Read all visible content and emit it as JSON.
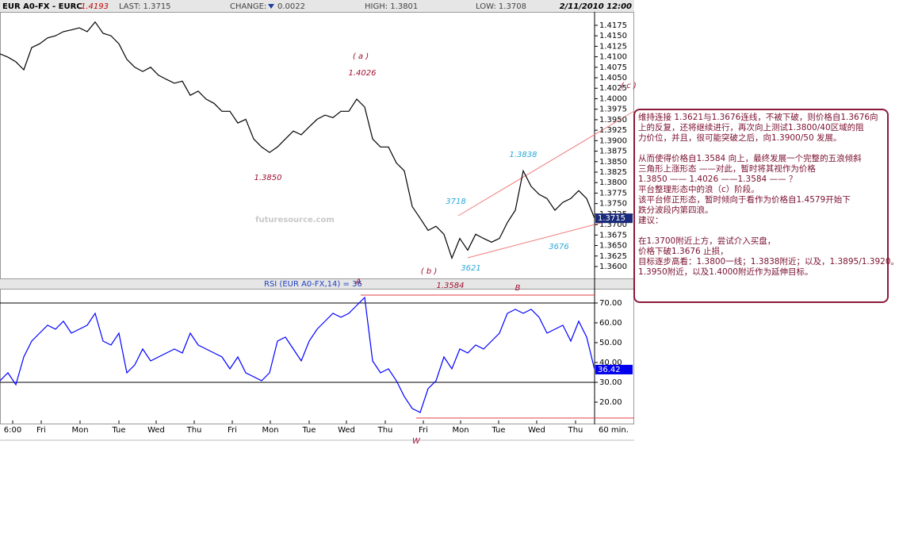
{
  "header": {
    "symbol": "EUR A0-FX - EURC",
    "price": "1.4193",
    "last": "LAST: 1.3715",
    "change_label": "CHANGE:",
    "change": "0.0022",
    "high": "HIGH: 1.3801",
    "low": "LOW: 1.3708",
    "datetime": "2/11/2010 12:00"
  },
  "chart_data": [
    {
      "type": "line",
      "name": "EUR A0-FX",
      "color": "#000000",
      "x": [
        0,
        5,
        10,
        15,
        20,
        25,
        30,
        35,
        40,
        45,
        50,
        55,
        60,
        65,
        70,
        75,
        80,
        85,
        90,
        95,
        100,
        105,
        110,
        115,
        120,
        125,
        130,
        135,
        140,
        145,
        150,
        155,
        160,
        165,
        170,
        175,
        180,
        185,
        190,
        195,
        200,
        205,
        210,
        215,
        220,
        225,
        230,
        235,
        240,
        245,
        250,
        255,
        260,
        265,
        270,
        275,
        280,
        285,
        290,
        295,
        300,
        305,
        310,
        315,
        320,
        325,
        330,
        335,
        340,
        345,
        350,
        355,
        360,
        365,
        370,
        375
      ],
      "values": [
        1.4107,
        1.4099,
        1.4088,
        1.4069,
        1.4122,
        1.4131,
        1.4145,
        1.415,
        1.416,
        1.4164,
        1.4169,
        1.416,
        1.4183,
        1.4156,
        1.415,
        1.4131,
        1.4094,
        1.4075,
        1.4065,
        1.4075,
        1.4056,
        1.4046,
        1.4037,
        1.4042,
        1.4008,
        1.4018,
        1.3999,
        1.3989,
        1.397,
        1.397,
        1.3942,
        1.3951,
        1.3904,
        1.3885,
        1.3872,
        1.3885,
        1.3904,
        1.3923,
        1.3914,
        1.3933,
        1.3951,
        1.3961,
        1.3955,
        1.397,
        1.397,
        1.3999,
        1.398,
        1.3904,
        1.3885,
        1.3885,
        1.3847,
        1.3828,
        1.3743,
        1.3715,
        1.3686,
        1.3696,
        1.3677,
        1.362,
        1.3667,
        1.3639,
        1.3677,
        1.3667,
        1.3658,
        1.3667,
        1.3705,
        1.3734,
        1.3828,
        1.3791,
        1.3772,
        1.3762,
        1.3734,
        1.3753,
        1.3762,
        1.3781,
        1.3762,
        1.3715
      ],
      "xlim": [
        0,
        375
      ],
      "ylim": [
        1.35735,
        1.4207
      ],
      "yticks": [
        {
          "value": 1.36,
          "label": "1.3600"
        },
        {
          "value": 1.3625,
          "label": "1.3625"
        },
        {
          "value": 1.365,
          "label": "1.3650"
        },
        {
          "value": 1.3675,
          "label": "1.3675"
        },
        {
          "value": 1.37,
          "label": "1.3700"
        },
        {
          "value": 1.3725,
          "label": "1.3725"
        },
        {
          "value": 1.375,
          "label": "1.3750"
        },
        {
          "value": 1.3775,
          "label": "1.3775"
        },
        {
          "value": 1.38,
          "label": "1.3800"
        },
        {
          "value": 1.3825,
          "label": "1.3825"
        },
        {
          "value": 1.385,
          "label": "1.3850"
        },
        {
          "value": 1.3875,
          "label": "1.3875"
        },
        {
          "value": 1.39,
          "label": "1.3900"
        },
        {
          "value": 1.3925,
          "label": "1.3925"
        },
        {
          "value": 1.395,
          "label": "1.3950"
        },
        {
          "value": 1.3975,
          "label": "1.3975"
        },
        {
          "value": 1.4,
          "label": "1.4000"
        },
        {
          "value": 1.4025,
          "label": "1.4025"
        },
        {
          "value": 1.405,
          "label": "1.4050"
        },
        {
          "value": 1.4075,
          "label": "1.4075"
        },
        {
          "value": 1.41,
          "label": "1.4100"
        },
        {
          "value": 1.4125,
          "label": "1.4125"
        },
        {
          "value": 1.415,
          "label": "1.4150"
        },
        {
          "value": 1.4175,
          "label": "1.4175"
        }
      ]
    },
    {
      "type": "line",
      "name": "RSI (EUR A0-FX,14) = 36",
      "color": "#0000ff",
      "x": [
        0,
        5,
        10,
        15,
        20,
        25,
        30,
        35,
        40,
        45,
        50,
        55,
        60,
        65,
        70,
        75,
        80,
        85,
        90,
        95,
        100,
        105,
        110,
        115,
        120,
        125,
        130,
        135,
        140,
        145,
        150,
        155,
        160,
        165,
        170,
        175,
        180,
        185,
        190,
        195,
        200,
        205,
        210,
        215,
        220,
        225,
        230,
        235,
        240,
        245,
        250,
        255,
        260,
        265,
        270,
        275,
        280,
        285,
        290,
        295,
        300,
        305,
        310,
        315,
        320,
        325,
        330,
        335,
        340,
        345,
        350,
        355,
        360,
        365,
        370,
        375
      ],
      "values": [
        30.8,
        34.8,
        28.8,
        42.8,
        50.8,
        54.8,
        58.8,
        56.8,
        60.8,
        54.8,
        56.8,
        58.8,
        64.8,
        50.8,
        48.8,
        54.8,
        34.8,
        38.8,
        46.8,
        40.8,
        42.8,
        44.8,
        46.8,
        44.8,
        54.8,
        48.8,
        46.8,
        44.8,
        42.8,
        36.8,
        42.8,
        34.8,
        32.8,
        30.8,
        34.8,
        50.8,
        52.8,
        46.8,
        40.8,
        50.8,
        56.8,
        60.8,
        64.8,
        62.8,
        64.8,
        68.8,
        72.8,
        40.8,
        34.8,
        36.8,
        30.8,
        22.8,
        16.8,
        14.8,
        26.8,
        30.8,
        42.8,
        36.8,
        46.8,
        44.8,
        48.8,
        46.8,
        50.8,
        54.8,
        64.8,
        66.8,
        64.8,
        66.8,
        62.8,
        54.8,
        56.8,
        58.8,
        50.8,
        60.8,
        52.8,
        36.42
      ],
      "xlim": [
        0,
        375
      ],
      "ylim": [
        10.8,
        76.8
      ],
      "yticks": [
        {
          "value": 20,
          "label": "20.00"
        },
        {
          "value": 30,
          "label": "30.00"
        },
        {
          "value": 40,
          "label": "40.00"
        },
        {
          "value": 50,
          "label": "50.00"
        },
        {
          "value": 60,
          "label": "60.00"
        },
        {
          "value": 70,
          "label": "70.00"
        }
      ],
      "reference_lines": [
        70,
        30
      ],
      "xticks": [
        {
          "value": 8,
          "label": "6:00"
        },
        {
          "value": 26,
          "label": "Fri"
        },
        {
          "value": 50.5,
          "label": "Mon"
        },
        {
          "value": 75,
          "label": "Tue"
        },
        {
          "value": 98.5,
          "label": "Wed"
        },
        {
          "value": 122.5,
          "label": "Thu"
        },
        {
          "value": 146.5,
          "label": "Fri"
        },
        {
          "value": 170.5,
          "label": "Mon"
        },
        {
          "value": 195,
          "label": "Tue"
        },
        {
          "value": 218.5,
          "label": "Wed"
        },
        {
          "value": 243,
          "label": "Thu"
        },
        {
          "value": 267,
          "label": "Fri"
        },
        {
          "value": 290.5,
          "label": "Mon"
        },
        {
          "value": 314.5,
          "label": "Tue"
        },
        {
          "value": 338.5,
          "label": "Wed"
        },
        {
          "value": 363,
          "label": "Thu"
        }
      ],
      "interval": "60 min."
    }
  ],
  "annotations": {
    "wave_a": "( a )",
    "wave_a_price": "1.4026",
    "low_1": "1.3850",
    "wave_b": "( b )",
    "wave_b_price": "1.3584",
    "wave_c": "( c )",
    "p1": "1.3838",
    "p2": "3718",
    "p3": "3621",
    "p4": "3676",
    "A": "A",
    "B": "B",
    "W": "W",
    "watermark": "futuresource.com"
  },
  "note": {
    "paragraphs": [
      [
        "维持连接 1.3621与1.3676连线，不被下破，则价格自1.3676向",
        "上的反复，还将继续进行，再次向上测试1.3800/40区域的阻",
        "力价位，并且，很可能突破之后，向1.3900/50 发展。"
      ],
      [
        "从而使得价格自1.3584 向上，最终发展一个完整的五浪倾斜",
        "三角形上涨形态 ——对此，暂时将其视作为价格",
        "1.3850 —— 1.4026 ——1.3584 —— ？",
        "平台整理形态中的浪（c）阶段。",
        " 该平台修正形态，暂时倾向于看作为价格自1.4579开始下",
        " 跌分波段内第四浪。",
        "建议："
      ],
      [
        "在1.3700附近上方，尝试介入买盘，",
        "价格下破1.3676 止损，",
        "目标逐步高看：1.3800一线；1.3838附近；以及，1.3895/1.3920。",
        "1.3950附近，以及1.4000附近作为延伸目标。"
      ]
    ]
  }
}
